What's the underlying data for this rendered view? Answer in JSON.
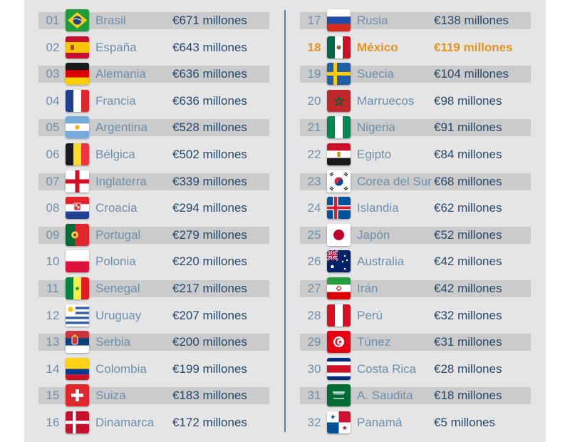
{
  "colors": {
    "highlight": "#e39420",
    "rank_text": "#6d8fab",
    "value_text": "#25486a",
    "row_shade": "#cbcbcb"
  },
  "chart_data": {
    "type": "table",
    "title": "",
    "columns": [
      "rank",
      "country",
      "value"
    ],
    "rows": [
      {
        "rank": "01",
        "country": "Brasil",
        "value": "€671 millones",
        "flag": "brazil-flag"
      },
      {
        "rank": "02",
        "country": "España",
        "value": "€643 millones",
        "flag": "spain-flag"
      },
      {
        "rank": "03",
        "country": "Alemania",
        "value": "€636 millones",
        "flag": "germany-flag"
      },
      {
        "rank": "04",
        "country": "Francia",
        "value": "€636 millones",
        "flag": "france-flag"
      },
      {
        "rank": "05",
        "country": "Argentina",
        "value": "€528 millones",
        "flag": "argentina-flag"
      },
      {
        "rank": "06",
        "country": "Bélgica",
        "value": "€502 millones",
        "flag": "belgium-flag"
      },
      {
        "rank": "07",
        "country": "Inglaterra",
        "value": "€339 millones",
        "flag": "england-flag"
      },
      {
        "rank": "08",
        "country": "Croacia",
        "value": "€294 millones",
        "flag": "croatia-flag"
      },
      {
        "rank": "09",
        "country": "Portugal",
        "value": "€279 millones",
        "flag": "portugal-flag"
      },
      {
        "rank": "10",
        "country": "Polonia",
        "value": "€220 millones",
        "flag": "poland-flag"
      },
      {
        "rank": "11",
        "country": "Senegal",
        "value": "€217 millones",
        "flag": "senegal-flag"
      },
      {
        "rank": "12",
        "country": "Uruguay",
        "value": "€207 millones",
        "flag": "uruguay-flag"
      },
      {
        "rank": "13",
        "country": "Serbia",
        "value": "€200 millones",
        "flag": "serbia-flag"
      },
      {
        "rank": "14",
        "country": "Colombia",
        "value": "€199 millones",
        "flag": "colombia-flag"
      },
      {
        "rank": "15",
        "country": "Suiza",
        "value": "€183 millones",
        "flag": "switzerland-flag"
      },
      {
        "rank": "16",
        "country": "Dinamarca",
        "value": "€172 millones",
        "flag": "denmark-flag"
      },
      {
        "rank": "17",
        "country": "Rusia",
        "value": "€138 millones",
        "flag": "russia-flag"
      },
      {
        "rank": "18",
        "country": "México",
        "value": "€119 millones",
        "flag": "mexico-flag",
        "highlight": true
      },
      {
        "rank": "19",
        "country": "Suecia",
        "value": "€104 millones",
        "flag": "sweden-flag"
      },
      {
        "rank": "20",
        "country": "Marruecos",
        "value": "€98 millones",
        "flag": "morocco-flag"
      },
      {
        "rank": "21",
        "country": "Nigeria",
        "value": "€91 millones",
        "flag": "nigeria-flag"
      },
      {
        "rank": "22",
        "country": "Egipto",
        "value": "€84 millones",
        "flag": "egypt-flag"
      },
      {
        "rank": "23",
        "country": "Corea del Sur",
        "value": "€68 millones",
        "flag": "south-korea-flag"
      },
      {
        "rank": "24",
        "country": "Islandia",
        "value": "€62 millones",
        "flag": "iceland-flag"
      },
      {
        "rank": "25",
        "country": "Japón",
        "value": "€52 millones",
        "flag": "japan-flag"
      },
      {
        "rank": "26",
        "country": "Australia",
        "value": "€42 millones",
        "flag": "australia-flag"
      },
      {
        "rank": "27",
        "country": "Irán",
        "value": "€42 millones",
        "flag": "iran-flag"
      },
      {
        "rank": "28",
        "country": "Perú",
        "value": "€32 millones",
        "flag": "peru-flag"
      },
      {
        "rank": "29",
        "country": "Túnez",
        "value": "€31 millones",
        "flag": "tunisia-flag"
      },
      {
        "rank": "30",
        "country": "Costa Rica",
        "value": "€28 millones",
        "flag": "costa-rica-flag"
      },
      {
        "rank": "31",
        "country": "A. Saudita",
        "value": "€18 millones",
        "flag": "saudi-arabia-flag"
      },
      {
        "rank": "32",
        "country": "Panamá",
        "value": "€5 millones",
        "flag": "panama-flag"
      }
    ]
  }
}
